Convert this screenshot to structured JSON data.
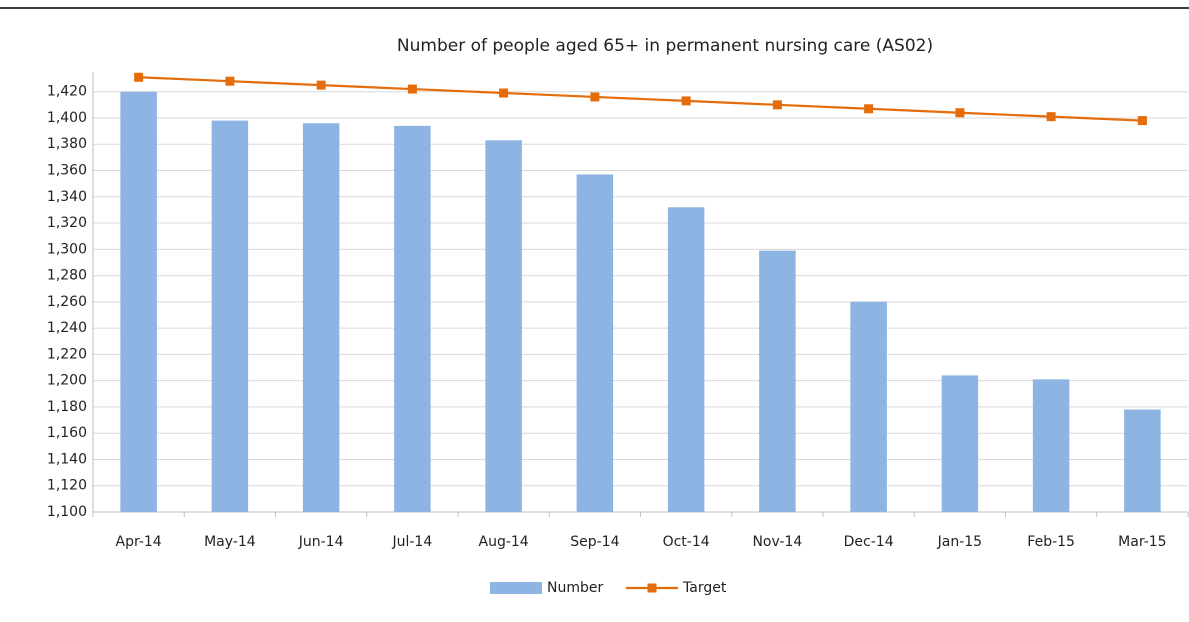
{
  "chart_data": {
    "type": "bar-line",
    "title": "Number of people aged 65+ in permanent nursing care (AS02)",
    "categories": [
      "Apr-14",
      "May-14",
      "Jun-14",
      "Jul-14",
      "Aug-14",
      "Sep-14",
      "Oct-14",
      "Nov-14",
      "Dec-14",
      "Jan-15",
      "Feb-15",
      "Mar-15"
    ],
    "series": [
      {
        "name": "Number",
        "type": "bar",
        "color": "#8db4e2",
        "values": [
          1420,
          1398,
          1396,
          1394,
          1383,
          1357,
          1332,
          1299,
          1260,
          1204,
          1201,
          1178
        ]
      },
      {
        "name": "Target",
        "type": "line",
        "color": "#e46c0a",
        "values": [
          1431,
          1428,
          1425,
          1422,
          1419,
          1416,
          1413,
          1410,
          1407,
          1404,
          1401,
          1398
        ]
      }
    ],
    "ylim": [
      1100,
      1435
    ],
    "yticks": [
      {
        "value": 1100,
        "label": "1,100"
      },
      {
        "value": 1120,
        "label": "1,120"
      },
      {
        "value": 1140,
        "label": "1,140"
      },
      {
        "value": 1160,
        "label": "1,160"
      },
      {
        "value": 1180,
        "label": "1,180"
      },
      {
        "value": 1200,
        "label": "1,200"
      },
      {
        "value": 1220,
        "label": "1,220"
      },
      {
        "value": 1240,
        "label": "1,240"
      },
      {
        "value": 1260,
        "label": "1,260"
      },
      {
        "value": 1280,
        "label": "1,280"
      },
      {
        "value": 1300,
        "label": "1,300"
      },
      {
        "value": 1320,
        "label": "1,320"
      },
      {
        "value": 1340,
        "label": "1,340"
      },
      {
        "value": 1360,
        "label": "1,360"
      },
      {
        "value": 1380,
        "label": "1,380"
      },
      {
        "value": 1400,
        "label": "1,400"
      },
      {
        "value": 1420,
        "label": "1,420"
      }
    ],
    "grid": true,
    "legend": "bottom"
  }
}
